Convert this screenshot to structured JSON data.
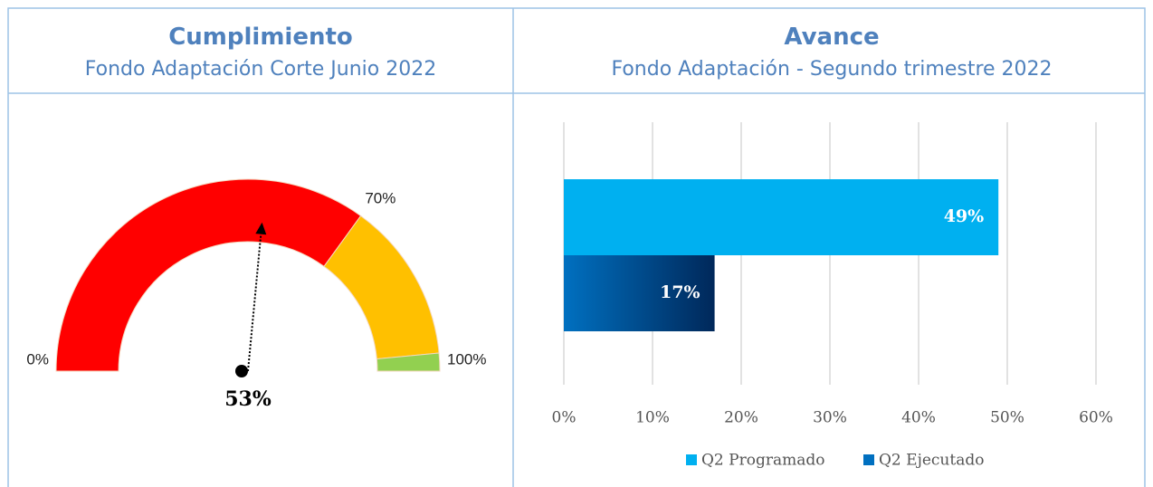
{
  "header": {
    "left": {
      "title": "Cumplimiento",
      "subtitle": "Fondo Adaptación Corte Junio 2022"
    },
    "right": {
      "title": "Avance",
      "subtitle": "Fondo Adaptación - Segundo trimestre 2022"
    }
  },
  "chart_data": [
    {
      "type": "gauge",
      "value": 53,
      "value_label": "53%",
      "range": [
        0,
        100
      ],
      "ticks": [
        {
          "value": 0,
          "label": "0%"
        },
        {
          "value": 70,
          "label": "70%"
        },
        {
          "value": 100,
          "label": "100%"
        }
      ],
      "bands": [
        {
          "from": 0,
          "to": 70,
          "color": "#ff0000"
        },
        {
          "from": 70,
          "to": 97,
          "color": "#ffc000"
        },
        {
          "from": 97,
          "to": 100,
          "color": "#92d050"
        }
      ]
    },
    {
      "type": "bar",
      "orientation": "horizontal",
      "series": [
        {
          "name": "Q2 Programado",
          "color": "#00b0f0",
          "values": [
            49
          ],
          "value_labels": [
            "49%"
          ]
        },
        {
          "name": "Q2 Ejecutado",
          "color": "#0070c0",
          "values": [
            17
          ],
          "value_labels": [
            "17%"
          ]
        }
      ],
      "xlim": [
        0,
        60
      ],
      "xticks": [
        {
          "value": 0,
          "label": "0%"
        },
        {
          "value": 10,
          "label": "10%"
        },
        {
          "value": 20,
          "label": "20%"
        },
        {
          "value": 30,
          "label": "30%"
        },
        {
          "value": 40,
          "label": "40%"
        },
        {
          "value": 50,
          "label": "50%"
        },
        {
          "value": 60,
          "label": "60%"
        }
      ],
      "grid": true,
      "legend": "bottom"
    }
  ]
}
